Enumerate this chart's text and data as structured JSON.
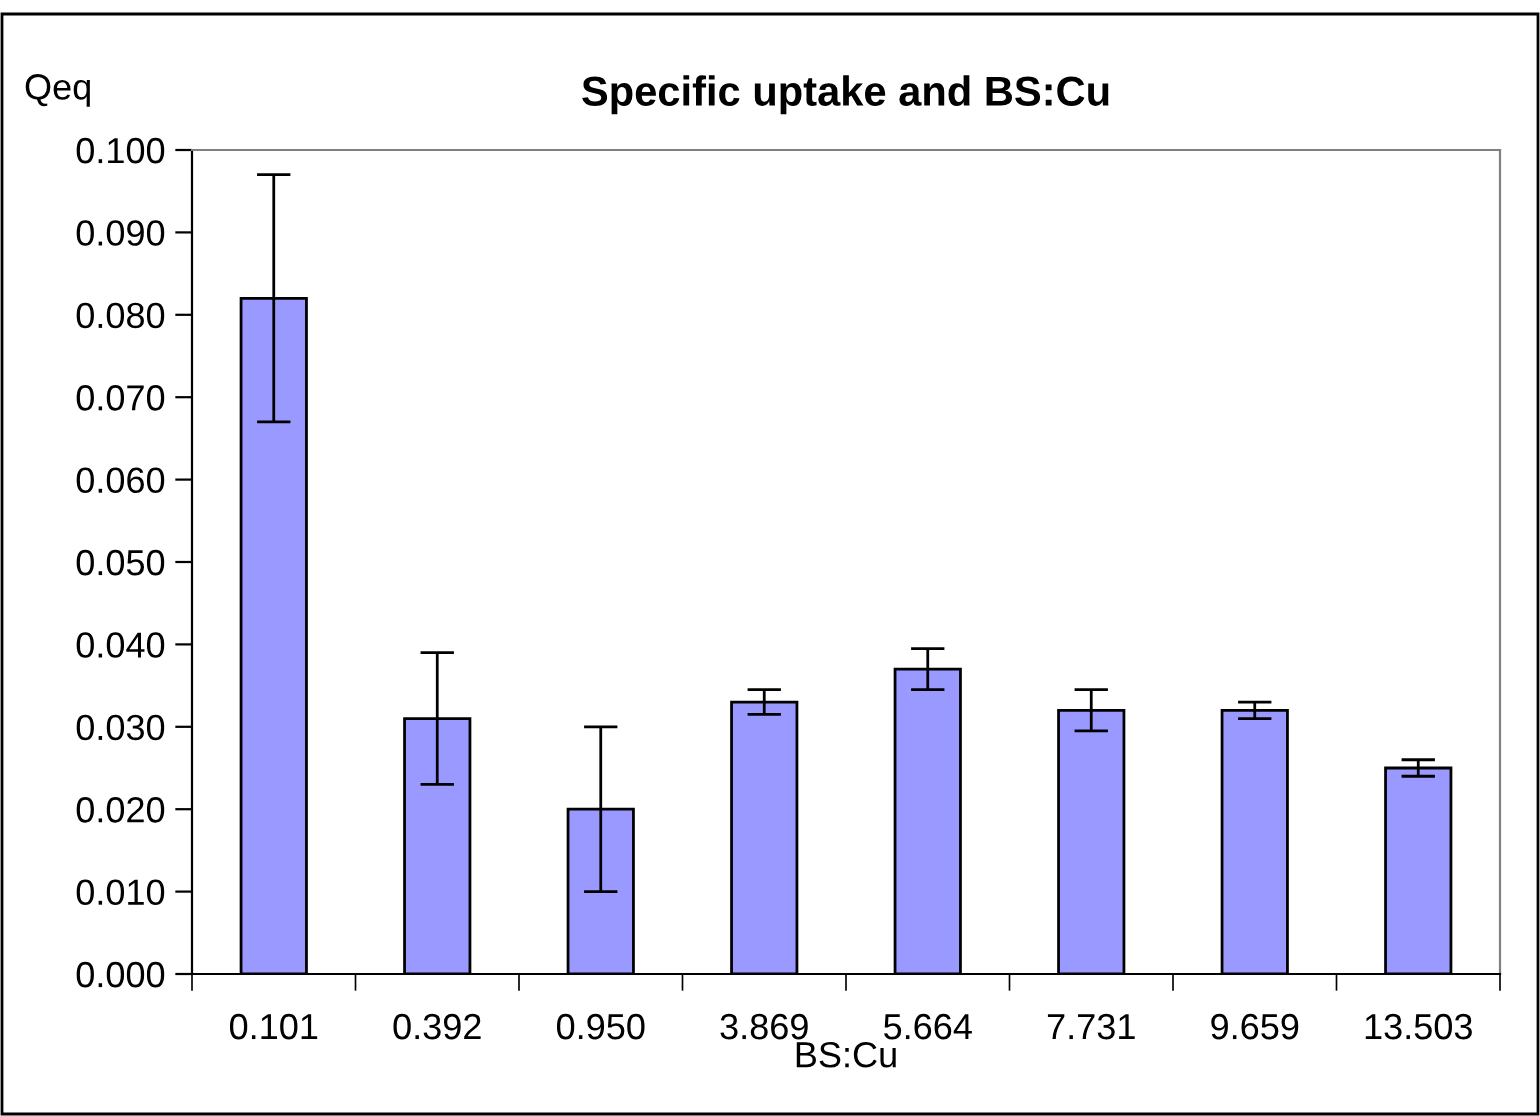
{
  "chart_data": {
    "type": "bar",
    "title": "Specific uptake and BS:Cu",
    "xlabel": "BS:Cu",
    "ylabel": "Qeq",
    "categories": [
      "0.101",
      "0.392",
      "0.950",
      "3.869",
      "5.664",
      "7.731",
      "9.659",
      "13.503"
    ],
    "values": [
      0.082,
      0.031,
      0.02,
      0.033,
      0.037,
      0.032,
      0.032,
      0.025
    ],
    "errors": [
      0.015,
      0.008,
      0.01,
      0.0015,
      0.0025,
      0.0025,
      0.001,
      0.001
    ],
    "color": "#9999ff",
    "ylim": [
      0,
      0.1
    ],
    "yticks": [
      {
        "value": 0,
        "label": "0.000"
      },
      {
        "value": 0.01,
        "label": "0.010"
      },
      {
        "value": 0.02,
        "label": "0.020"
      },
      {
        "value": 0.03,
        "label": "0.030"
      },
      {
        "value": 0.04,
        "label": "0.040"
      },
      {
        "value": 0.05,
        "label": "0.050"
      },
      {
        "value": 0.06,
        "label": "0.060"
      },
      {
        "value": 0.07,
        "label": "0.070"
      },
      {
        "value": 0.08,
        "label": "0.080"
      },
      {
        "value": 0.09,
        "label": "0.090"
      },
      {
        "value": 0.1,
        "label": "0.100"
      }
    ],
    "grid": false,
    "legend": false
  }
}
